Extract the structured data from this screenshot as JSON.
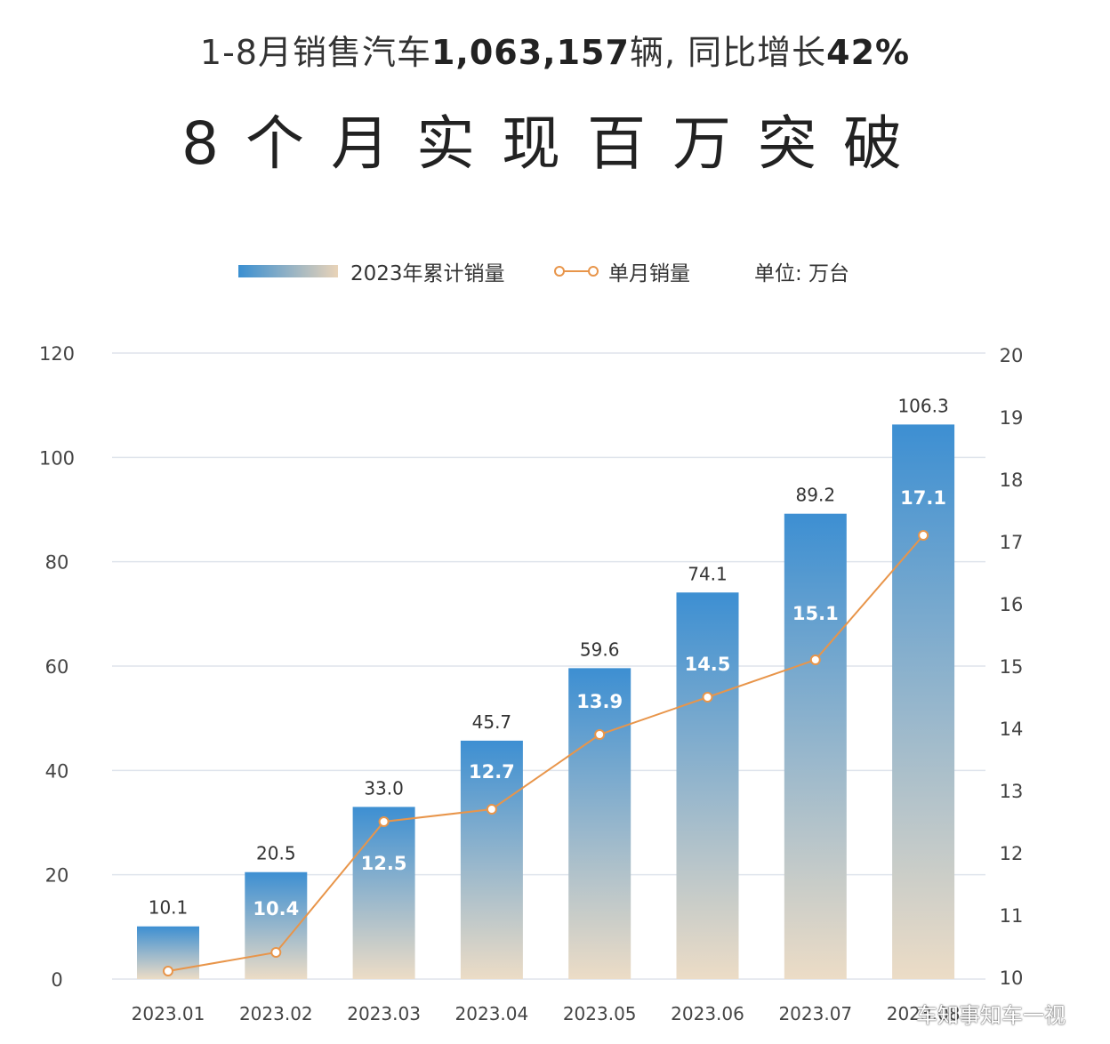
{
  "header": {
    "prefix": "1-8月销售汽车",
    "total": "1,063,157",
    "mid": "辆, 同比增长",
    "growth": "42%",
    "big_title": "8个月实现百万突破"
  },
  "legend": {
    "bar_label": "2023年累计销量",
    "line_label": "单月销量",
    "unit_label": "单位: 万台"
  },
  "watermark": "车知事知车一视",
  "colors": {
    "bar_top": "#3d8fd2",
    "bar_bottom": "#ecdcc6",
    "line": "#e8954a",
    "grid": "#dfe4ec"
  },
  "chart_data": {
    "type": "bar",
    "categories": [
      "2023.01",
      "2023.02",
      "2023.03",
      "2023.04",
      "2023.05",
      "2023.06",
      "2023.07",
      "2023.08"
    ],
    "series": [
      {
        "name": "2023年累计销量",
        "type": "bar",
        "axis": "left",
        "values": [
          10.1,
          20.5,
          33.0,
          45.7,
          59.6,
          74.1,
          89.2,
          106.3
        ],
        "labels": [
          "10.1",
          "20.5",
          "33.0",
          "45.7",
          "59.6",
          "74.1",
          "89.2",
          "106.3"
        ]
      },
      {
        "name": "单月销量",
        "type": "line",
        "axis": "right",
        "values": [
          10.1,
          10.4,
          12.5,
          12.7,
          13.9,
          14.5,
          15.1,
          17.1
        ],
        "labels": [
          "",
          "10.4",
          "12.5",
          "12.7",
          "13.9",
          "14.5",
          "15.1",
          "17.1"
        ]
      }
    ],
    "y_left": {
      "ylim": [
        0,
        120
      ],
      "ticks": [
        0,
        20,
        40,
        60,
        80,
        100,
        120
      ]
    },
    "y_right": {
      "ylim": [
        10,
        20
      ],
      "ticks": [
        10,
        11,
        12,
        13,
        14,
        15,
        16,
        17,
        18,
        19,
        20
      ]
    },
    "grid": true,
    "legend_position": "top-center"
  }
}
